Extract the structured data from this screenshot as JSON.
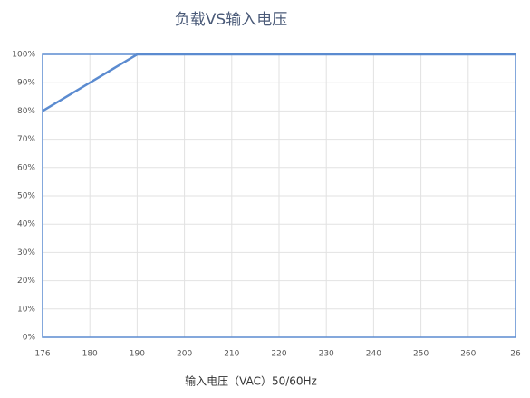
{
  "chart_data": {
    "type": "line",
    "title": "负载VS输入电压",
    "x_label": "输入电压（VAC）50/60Hz",
    "categories": [
      "176",
      "180",
      "190",
      "200",
      "210",
      "220",
      "230",
      "240",
      "250",
      "260",
      "26"
    ],
    "series": [
      {
        "name": "负载",
        "color": "#5b8bd0",
        "values": [
          80,
          90,
          100,
          100,
          100,
          100,
          100,
          100,
          100,
          100,
          100
        ]
      }
    ],
    "ylim": [
      0,
      100
    ],
    "yticks": [
      {
        "value": 0,
        "label": "0%"
      },
      {
        "value": 10,
        "label": "10%"
      },
      {
        "value": 20,
        "label": "20%"
      },
      {
        "value": 30,
        "label": "30%"
      },
      {
        "value": 40,
        "label": "40%"
      },
      {
        "value": 50,
        "label": "50%"
      },
      {
        "value": 60,
        "label": "60%"
      },
      {
        "value": 70,
        "label": "70%"
      },
      {
        "value": 80,
        "label": "80%"
      },
      {
        "value": 90,
        "label": "90%"
      },
      {
        "value": 100,
        "label": "100%"
      }
    ],
    "grid": true
  }
}
